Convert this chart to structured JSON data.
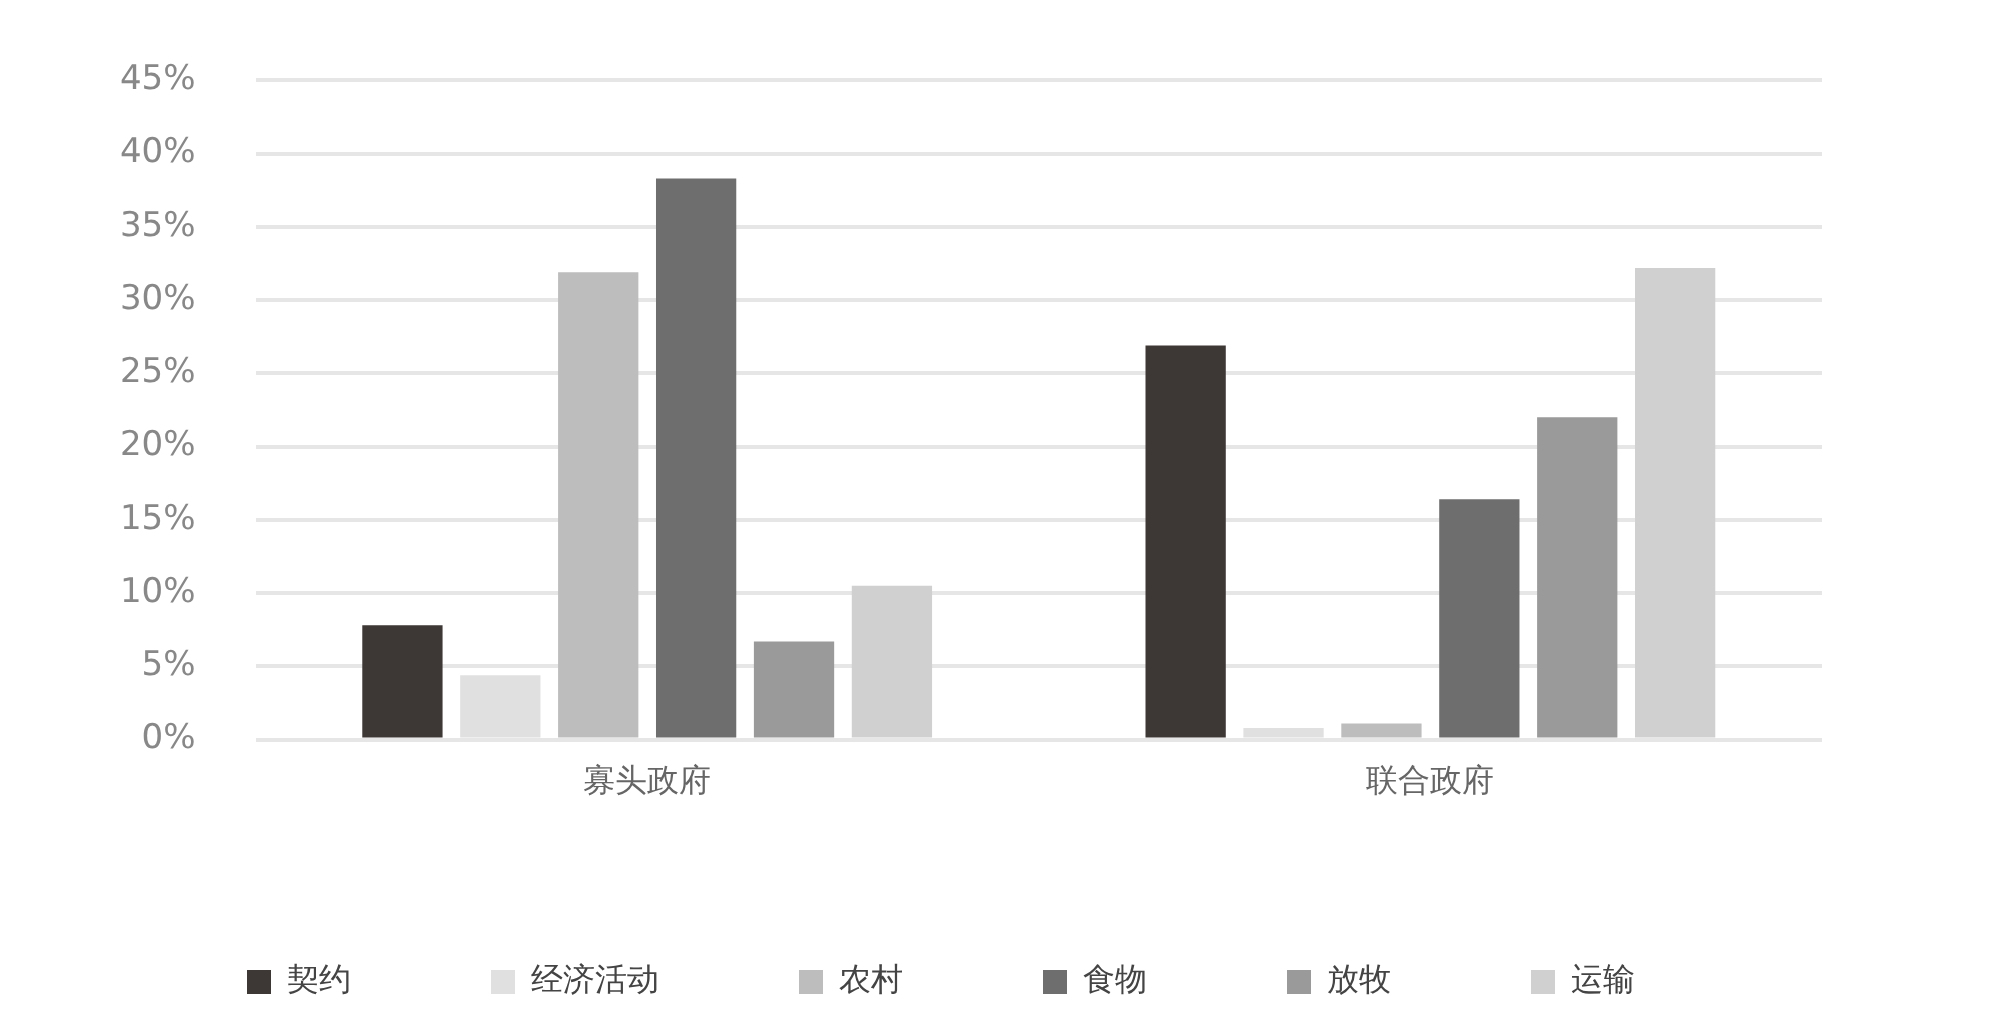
{
  "chart_data": {
    "type": "bar",
    "categories": [
      "寡头政府",
      "联合政府"
    ],
    "series": [
      {
        "name": "契约",
        "color": "#3d3735",
        "values": [
          7.8,
          26.9
        ]
      },
      {
        "name": "经济活动",
        "color": "#e0e0e0",
        "values": [
          4.4,
          0.8
        ]
      },
      {
        "name": "农村",
        "color": "#bdbdbd",
        "values": [
          31.9,
          1.1
        ]
      },
      {
        "name": "食物",
        "color": "#6e6e6e",
        "values": [
          38.3,
          16.4
        ]
      },
      {
        "name": "放牧",
        "color": "#9a9a9a",
        "values": [
          6.7,
          22.0
        ]
      },
      {
        "name": "运输",
        "color": "#d0d0d0",
        "values": [
          10.5,
          32.2
        ]
      }
    ],
    "ylim": [
      0,
      45
    ],
    "yticks": [
      {
        "value": 0,
        "label": "0%"
      },
      {
        "value": 5,
        "label": "5%"
      },
      {
        "value": 10,
        "label": "10%"
      },
      {
        "value": 15,
        "label": "15%"
      },
      {
        "value": 20,
        "label": "20%"
      },
      {
        "value": 25,
        "label": "25%"
      },
      {
        "value": 30,
        "label": "30%"
      },
      {
        "value": 35,
        "label": "35%"
      },
      {
        "value": 40,
        "label": "40%"
      },
      {
        "value": 45,
        "label": "45%"
      }
    ],
    "grid": "y",
    "legend": "bottom"
  }
}
